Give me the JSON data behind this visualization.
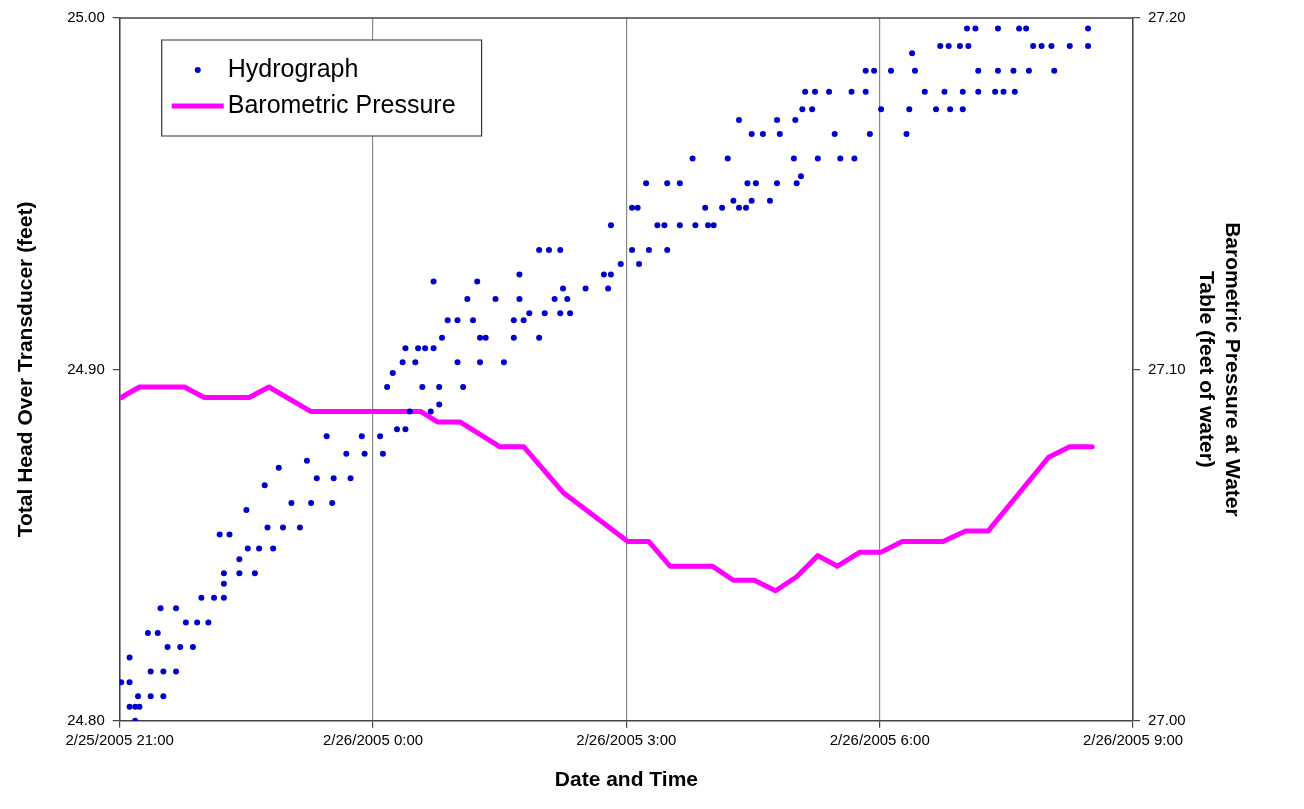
{
  "chart_data": {
    "type": "scatter",
    "xlabel": "Date and Time",
    "ylabel": "Total Head Over Transducer (feet)",
    "y2label": "Barometric Pressure at Water Table (feet of water)",
    "xlim": [
      "2005-02-25T21:00",
      "2005-02-26T09:00"
    ],
    "xticks": [
      {
        "value": "2005-02-25T21:00",
        "label": "2/25/2005 21:00"
      },
      {
        "value": "2005-02-26T00:00",
        "label": "2/26/2005 0:00"
      },
      {
        "value": "2005-02-26T03:00",
        "label": "2/26/2005 3:00"
      },
      {
        "value": "2005-02-26T06:00",
        "label": "2/26/2005 6:00"
      },
      {
        "value": "2005-02-26T09:00",
        "label": "2/26/2005 9:00"
      }
    ],
    "ylim": [
      24.8,
      25.0
    ],
    "yticks": [
      {
        "value": 24.8,
        "label": "24.80"
      },
      {
        "value": 24.9,
        "label": "24.90"
      },
      {
        "value": 25.0,
        "label": "25.00"
      }
    ],
    "y2lim": [
      27.0,
      27.2
    ],
    "y2ticks": [
      {
        "value": 27.0,
        "label": "27.00"
      },
      {
        "value": 27.1,
        "label": "27.10"
      },
      {
        "value": 27.2,
        "label": "27.20"
      }
    ],
    "grid": "x",
    "legend": "top left",
    "series": [
      {
        "name": "Hydrograph",
        "type": "scatter",
        "marker": "circle",
        "color": "#0000cc",
        "x": [
          "2005-02-25T21:11",
          "2005-02-25T21:07",
          "2005-02-25T21:11",
          "2005-02-25T21:14",
          "2005-02-25T21:13",
          "2005-02-25T21:22",
          "2005-02-25T21:31",
          "2005-02-25T21:01",
          "2005-02-25T21:07",
          "2005-02-25T21:22",
          "2005-02-25T21:31",
          "2005-02-25T21:40",
          "2005-02-25T21:07",
          "2005-02-25T21:34",
          "2005-02-25T21:43",
          "2005-02-25T21:52",
          "2005-02-25T21:20",
          "2005-02-25T21:27",
          "2005-02-25T21:47",
          "2005-02-25T21:55",
          "2005-02-25T22:03",
          "2005-02-25T21:29",
          "2005-02-25T21:40",
          "2005-02-25T21:58",
          "2005-02-25T22:07",
          "2005-02-25T22:14",
          "2005-02-25T22:14",
          "2005-02-25T22:14",
          "2005-02-25T22:25",
          "2005-02-25T22:36",
          "2005-02-25T22:25",
          "2005-02-25T22:31",
          "2005-02-25T22:39",
          "2005-02-25T22:49",
          "2005-02-25T22:11",
          "2005-02-25T22:18",
          "2005-02-25T22:45",
          "2005-02-25T22:56",
          "2005-02-25T23:08",
          "2005-02-25T22:30",
          "2005-02-25T23:02",
          "2005-02-25T23:16",
          "2005-02-25T23:31",
          "2005-02-25T22:43",
          "2005-02-25T23:20",
          "2005-02-25T23:32",
          "2005-02-25T23:44",
          "2005-02-25T22:53",
          "2005-02-25T23:13",
          "2005-02-25T23:41",
          "2005-02-25T23:54",
          "2005-02-26T00:07",
          "2005-02-25T23:27",
          "2005-02-25T23:52",
          "2005-02-26T00:05",
          "2005-02-26T00:17",
          "2005-02-26T00:23",
          "2005-02-26T00:26",
          "2005-02-26T00:41",
          "2005-02-26T00:47",
          "2005-02-26T00:10",
          "2005-02-26T00:35",
          "2005-02-26T00:47",
          "2005-02-26T01:04",
          "2005-02-26T00:14",
          "2005-02-26T00:21",
          "2005-02-26T00:30",
          "2005-02-26T01:00",
          "2005-02-26T01:16",
          "2005-02-26T01:33",
          "2005-02-26T00:23",
          "2005-02-26T00:32",
          "2005-02-26T00:37",
          "2005-02-26T00:43",
          "2005-02-26T00:49",
          "2005-02-26T01:16",
          "2005-02-26T01:20",
          "2005-02-26T01:40",
          "2005-02-26T01:58",
          "2005-02-26T00:53",
          "2005-02-26T01:00",
          "2005-02-26T01:11",
          "2005-02-26T01:40",
          "2005-02-26T01:47",
          "2005-02-26T01:51",
          "2005-02-26T02:02",
          "2005-02-26T02:13",
          "2005-02-26T02:20",
          "2005-02-26T01:07",
          "2005-02-26T01:27",
          "2005-02-26T01:44",
          "2005-02-26T02:09",
          "2005-02-26T02:18",
          "2005-02-26T02:15",
          "2005-02-26T02:31",
          "2005-02-26T02:47",
          "2005-02-26T00:43",
          "2005-02-26T01:14",
          "2005-02-26T01:44",
          "2005-02-26T02:44",
          "2005-02-26T02:49",
          "2005-02-26T02:56",
          "2005-02-26T03:09",
          "2005-02-26T01:58",
          "2005-02-26T02:05",
          "2005-02-26T02:13",
          "2005-02-26T03:04",
          "2005-02-26T03:16",
          "2005-02-26T03:29",
          "2005-02-26T02:49",
          "2005-02-26T03:22",
          "2005-02-26T03:27",
          "2005-02-26T03:38",
          "2005-02-26T03:49",
          "2005-02-26T03:58",
          "2005-02-26T04:02",
          "2005-02-26T03:04",
          "2005-02-26T03:08",
          "2005-02-26T03:56",
          "2005-02-26T04:08",
          "2005-02-26T04:20",
          "2005-02-26T04:25",
          "2005-02-26T04:16",
          "2005-02-26T04:29",
          "2005-02-26T04:42",
          "2005-02-26T03:14",
          "2005-02-26T03:29",
          "2005-02-26T03:38",
          "2005-02-26T04:26",
          "2005-02-26T04:32",
          "2005-02-26T04:47",
          "2005-02-26T05:01",
          "2005-02-26T05:04",
          "2005-02-26T03:47",
          "2005-02-26T04:12",
          "2005-02-26T04:59",
          "2005-02-26T05:16",
          "2005-02-26T05:32",
          "2005-02-26T05:42",
          "2005-02-26T04:29",
          "2005-02-26T04:37",
          "2005-02-26T04:49",
          "2005-02-26T05:28",
          "2005-02-26T05:53",
          "2005-02-26T06:19",
          "2005-02-26T04:20",
          "2005-02-26T04:47",
          "2005-02-26T05:00",
          "2005-02-26T05:05",
          "2005-02-26T05:12",
          "2005-02-26T06:01",
          "2005-02-26T06:21",
          "2005-02-26T06:40",
          "2005-02-26T06:50",
          "2005-02-26T06:59",
          "2005-02-26T05:07",
          "2005-02-26T05:14",
          "2005-02-26T05:24",
          "2005-02-26T05:40",
          "2005-02-26T05:50",
          "2005-02-26T06:32",
          "2005-02-26T06:46",
          "2005-02-26T06:59",
          "2005-02-26T07:10",
          "2005-02-26T07:22",
          "2005-02-26T07:28",
          "2005-02-26T07:36",
          "2005-02-26T05:50",
          "2005-02-26T05:56",
          "2005-02-26T06:08",
          "2005-02-26T06:25",
          "2005-02-26T07:10",
          "2005-02-26T07:24",
          "2005-02-26T07:35",
          "2005-02-26T07:46",
          "2005-02-26T08:04",
          "2005-02-26T06:23",
          "2005-02-26T06:43",
          "2005-02-26T06:49",
          "2005-02-26T06:57",
          "2005-02-26T07:03",
          "2005-02-26T07:49",
          "2005-02-26T07:55",
          "2005-02-26T08:02",
          "2005-02-26T08:15",
          "2005-02-26T08:28",
          "2005-02-26T07:02",
          "2005-02-26T07:08",
          "2005-02-26T07:24",
          "2005-02-26T07:39",
          "2005-02-26T07:44",
          "2005-02-26T08:28"
        ],
        "values": [
          24.8,
          24.804,
          24.804,
          24.804,
          24.807,
          24.807,
          24.807,
          24.811,
          24.811,
          24.814,
          24.814,
          24.814,
          24.818,
          24.821,
          24.821,
          24.821,
          24.825,
          24.825,
          24.828,
          24.828,
          24.828,
          24.832,
          24.832,
          24.835,
          24.835,
          24.835,
          24.839,
          24.842,
          24.842,
          24.842,
          24.846,
          24.849,
          24.849,
          24.849,
          24.853,
          24.853,
          24.855,
          24.855,
          24.855,
          24.86,
          24.862,
          24.862,
          24.862,
          24.867,
          24.869,
          24.869,
          24.869,
          24.872,
          24.874,
          24.876,
          24.876,
          24.876,
          24.881,
          24.881,
          24.881,
          24.883,
          24.883,
          24.888,
          24.888,
          24.89,
          24.895,
          24.895,
          24.895,
          24.895,
          24.899,
          24.902,
          24.902,
          24.902,
          24.902,
          24.902,
          24.906,
          24.906,
          24.906,
          24.906,
          24.909,
          24.909,
          24.909,
          24.909,
          24.909,
          24.914,
          24.914,
          24.914,
          24.914,
          24.914,
          24.916,
          24.916,
          24.916,
          24.916,
          24.92,
          24.92,
          24.92,
          24.92,
          24.92,
          24.923,
          24.923,
          24.923,
          24.925,
          24.925,
          24.927,
          24.927,
          24.927,
          24.93,
          24.93,
          24.934,
          24.934,
          24.934,
          24.934,
          24.934,
          24.934,
          24.941,
          24.941,
          24.941,
          24.941,
          24.941,
          24.941,
          24.941,
          24.946,
          24.946,
          24.946,
          24.946,
          24.946,
          24.946,
          24.948,
          24.948,
          24.948,
          24.953,
          24.953,
          24.953,
          24.953,
          24.953,
          24.953,
          24.953,
          24.955,
          24.96,
          24.96,
          24.96,
          24.96,
          24.96,
          24.96,
          24.967,
          24.967,
          24.967,
          24.967,
          24.967,
          24.967,
          24.971,
          24.971,
          24.971,
          24.974,
          24.974,
          24.974,
          24.974,
          24.974,
          24.974,
          24.974,
          24.979,
          24.979,
          24.979,
          24.979,
          24.979,
          24.979,
          24.979,
          24.979,
          24.979,
          24.979,
          24.979,
          24.979,
          24.985,
          24.985,
          24.985,
          24.985,
          24.985,
          24.985,
          24.985,
          24.985,
          24.985,
          24.99,
          24.992,
          24.992,
          24.992,
          24.992,
          24.992,
          24.992,
          24.992,
          24.992,
          24.992,
          24.997,
          24.997,
          24.997,
          24.997,
          24.997,
          24.997
        ]
      },
      {
        "name": "Barometric Pressure",
        "type": "line",
        "axis": "y2",
        "color": "#ff00ff",
        "x": [
          "2005-02-25T21:01",
          "2005-02-25T21:14",
          "2005-02-25T21:46",
          "2005-02-25T22:00",
          "2005-02-25T22:32",
          "2005-02-25T22:46",
          "2005-02-25T23:16",
          "2005-02-26T00:34",
          "2005-02-26T00:46",
          "2005-02-26T01:02",
          "2005-02-26T01:30",
          "2005-02-26T01:47",
          "2005-02-26T02:15",
          "2005-02-26T03:01",
          "2005-02-26T03:16",
          "2005-02-26T03:31",
          "2005-02-26T04:01",
          "2005-02-26T04:16",
          "2005-02-26T04:31",
          "2005-02-26T04:46",
          "2005-02-26T05:01",
          "2005-02-26T05:16",
          "2005-02-26T05:30",
          "2005-02-26T05:46",
          "2005-02-26T06:01",
          "2005-02-26T06:16",
          "2005-02-26T06:45",
          "2005-02-26T07:01",
          "2005-02-26T07:17",
          "2005-02-26T08:00",
          "2005-02-26T08:15",
          "2005-02-26T08:31"
        ],
        "values": [
          27.092,
          27.095,
          27.095,
          27.092,
          27.092,
          27.095,
          27.088,
          27.088,
          27.085,
          27.085,
          27.078,
          27.078,
          27.065,
          27.051,
          27.051,
          27.044,
          27.044,
          27.04,
          27.04,
          27.037,
          27.041,
          27.047,
          27.044,
          27.048,
          27.048,
          27.051,
          27.051,
          27.054,
          27.054,
          27.075,
          27.078,
          27.078
        ]
      }
    ]
  }
}
